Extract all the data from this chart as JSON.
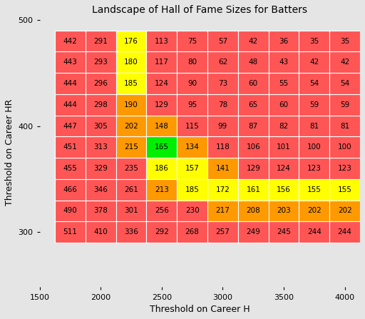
{
  "title": "Landscape of Hall of Fame Sizes for Batters",
  "xlabel": "Threshold on Career H",
  "ylabel": "Threshold on Career HR",
  "xlim": [
    1500,
    4125
  ],
  "ylim": [
    248,
    502
  ],
  "xticks": [
    1500,
    2000,
    2500,
    3000,
    3500,
    4000
  ],
  "yticks": [
    300,
    400,
    500
  ],
  "x_edges": [
    1625,
    1875,
    2125,
    2375,
    2625,
    2875,
    3125,
    3375,
    3625,
    3875,
    4125
  ],
  "y_edges": [
    290,
    310,
    330,
    350,
    370,
    390,
    410,
    430,
    450,
    470,
    490
  ],
  "x_centers": [
    1750,
    2000,
    2250,
    2500,
    2750,
    3000,
    3250,
    3500,
    3750,
    4000
  ],
  "y_centers": [
    300,
    320,
    340,
    360,
    380,
    400,
    420,
    440,
    460,
    480
  ],
  "grid": [
    [
      511,
      410,
      336,
      292,
      268,
      257,
      249,
      245,
      244,
      244
    ],
    [
      490,
      378,
      301,
      256,
      230,
      217,
      208,
      203,
      202,
      202
    ],
    [
      466,
      346,
      261,
      213,
      185,
      172,
      161,
      156,
      155,
      155
    ],
    [
      455,
      329,
      235,
      186,
      157,
      141,
      129,
      124,
      123,
      123
    ],
    [
      451,
      313,
      215,
      165,
      134,
      118,
      106,
      101,
      100,
      100
    ],
    [
      447,
      305,
      202,
      148,
      115,
      99,
      87,
      82,
      81,
      81
    ],
    [
      444,
      298,
      190,
      129,
      95,
      78,
      65,
      60,
      59,
      59
    ],
    [
      444,
      296,
      185,
      124,
      90,
      73,
      60,
      55,
      54,
      54
    ],
    [
      443,
      293,
      180,
      117,
      80,
      62,
      48,
      43,
      42,
      42
    ],
    [
      442,
      291,
      176,
      113,
      75,
      57,
      42,
      36,
      35,
      35
    ]
  ],
  "color_stops": [
    [
      0.0,
      "#ff5555"
    ],
    [
      0.55,
      "#ff5555"
    ],
    [
      0.62,
      "#ff9900"
    ],
    [
      0.68,
      "#ffff00"
    ],
    [
      0.72,
      "#00ee00"
    ],
    [
      0.76,
      "#ffff00"
    ],
    [
      0.82,
      "#ff9900"
    ],
    [
      0.87,
      "#ff5555"
    ],
    [
      1.0,
      "#ff5555"
    ]
  ],
  "bg_color": "#e5e5e5",
  "cell_edge_color": "white",
  "text_color": "black",
  "title_fontsize": 10,
  "label_fontsize": 9,
  "tick_fontsize": 8,
  "text_fontsize": 7.5
}
